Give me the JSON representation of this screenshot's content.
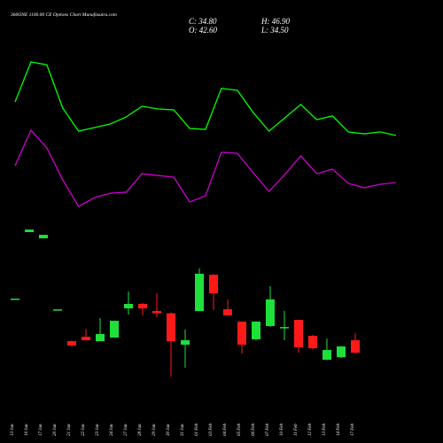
{
  "chart_data": {
    "type": "candlestick",
    "title": "360ONE 1100.00 CE Options Chart Munafasutra.com",
    "info": [
      "C: 34.80",
      "H: 46.90",
      "O: 42.60",
      "L: 34.50"
    ],
    "categories": [
      "13 Jan",
      "16 Jan",
      "17 Jan",
      "20 Jan",
      "21 Jan",
      "22 Jan",
      "23 Jan",
      "24 Jan",
      "27 Jan",
      "28 Jan",
      "29 Jan",
      "30 Jan",
      "31 Jan",
      "01 Feb",
      "03 Feb",
      "04 Feb",
      "05 Feb",
      "06 Feb",
      "07 Feb",
      "10 Feb",
      "11 Feb",
      "12 Feb",
      "13 Feb",
      "14 Feb",
      "17 Feb"
    ],
    "open": [
      68.7,
      110.4,
      106.5,
      62.0,
      42.0,
      44.8,
      42.0,
      44.3,
      62.6,
      65.4,
      60.9,
      59.5,
      39.8,
      60.9,
      83.7,
      62.0,
      54.3,
      43.2,
      51.5,
      50.9,
      55.4,
      45.4,
      30.4,
      32.0,
      42.6
    ],
    "high": [
      68.7,
      112.0,
      108.7,
      62.0,
      42.5,
      49.8,
      56.5,
      55.0,
      73.2,
      66.0,
      72.0,
      60.0,
      49.3,
      87.6,
      84.0,
      68.2,
      54.3,
      54.5,
      76.5,
      61.0,
      55.5,
      46.0,
      43.7,
      39.0,
      46.9
    ],
    "low": [
      68.7,
      110.4,
      106.5,
      62.0,
      38.5,
      42.6,
      42.0,
      44.0,
      58.7,
      58.0,
      57.0,
      19.8,
      25.4,
      60.9,
      61.5,
      58.0,
      34.3,
      42.5,
      51.0,
      42.6,
      34.8,
      37.0,
      30.0,
      31.5,
      34.5
    ],
    "close": [
      68.7,
      112.0,
      108.7,
      62.0,
      39.3,
      42.6,
      46.5,
      54.8,
      65.4,
      62.6,
      59.5,
      42.0,
      42.6,
      84.3,
      72.0,
      58.2,
      39.8,
      54.3,
      68.2,
      50.9,
      38.2,
      37.6,
      36.5,
      38.7,
      34.8
    ],
    "up_color": "#1fe03a",
    "down_color": "#ff1a1a",
    "series": [
      {
        "color": "#00ff00",
        "values": [
          192.0,
          217.0,
          215.3,
          188.2,
          173.7,
          175.9,
          178.2,
          182.6,
          189.3,
          187.6,
          187.0,
          175.4,
          174.8,
          200.5,
          199.3,
          185.4,
          173.7,
          182.1,
          190.4,
          180.9,
          183.2,
          173.2,
          172.0,
          173.2,
          171.0
        ]
      },
      {
        "color": "#cc00cc",
        "values": [
          152.0,
          174.3,
          163.2,
          143.2,
          126.5,
          132.0,
          134.8,
          135.4,
          147.0,
          145.9,
          144.8,
          129.3,
          133.2,
          160.4,
          159.8,
          147.6,
          135.9,
          146.5,
          158.2,
          147.0,
          149.8,
          140.9,
          138.2,
          140.4,
          141.5
        ]
      }
    ],
    "ylim": [
      -21.8,
      255.9
    ]
  }
}
